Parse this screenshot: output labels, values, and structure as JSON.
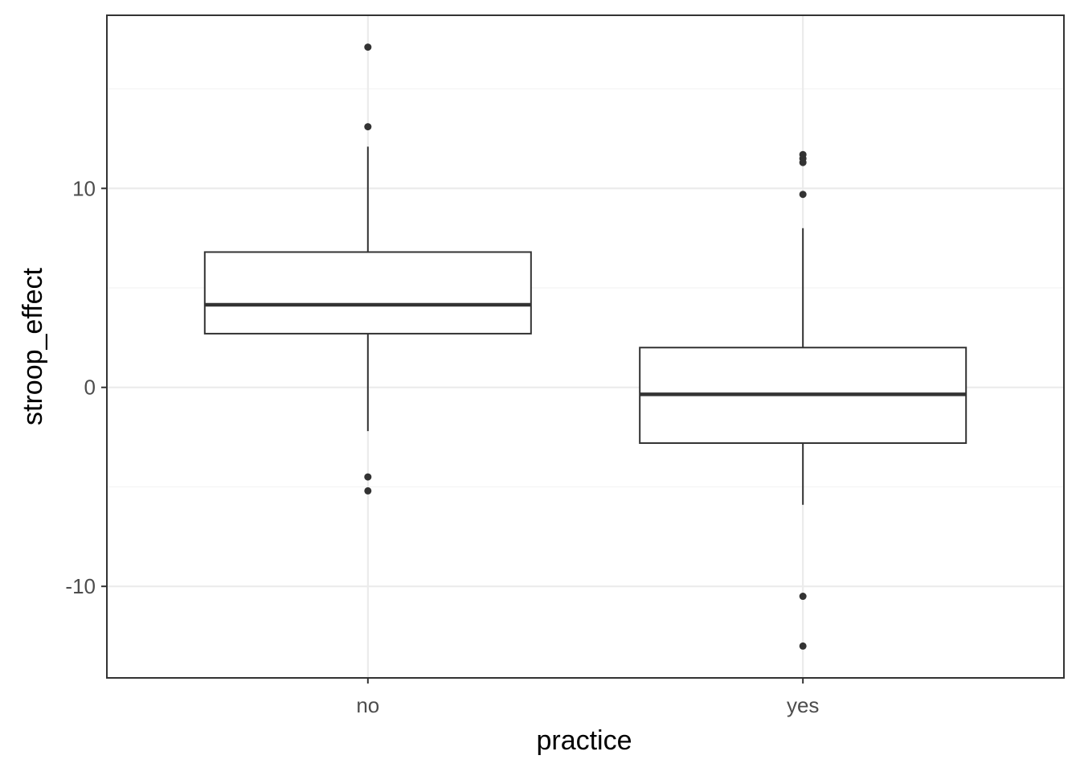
{
  "chart_data": {
    "type": "boxplot",
    "title": "",
    "xlabel": "practice",
    "ylabel": "stroop_effect",
    "ylim": [
      -14.6,
      18.7
    ],
    "y_ticks": [
      "-10",
      "0",
      "10"
    ],
    "y_tick_values": [
      -10,
      0,
      10
    ],
    "grid": true,
    "legend": "none",
    "categories": [
      "no",
      "yes"
    ],
    "boxes": [
      {
        "category": "no",
        "lower_whisker": -2.2,
        "q1": 2.7,
        "median": 4.15,
        "q3": 6.8,
        "upper_whisker": 12.1,
        "outliers": [
          17.1,
          13.1,
          -4.5,
          -5.2
        ]
      },
      {
        "category": "yes",
        "lower_whisker": -5.9,
        "q1": -2.8,
        "median": -0.35,
        "q3": 2.0,
        "upper_whisker": 8.0,
        "outliers": [
          11.7,
          11.5,
          11.3,
          9.7,
          -10.5,
          -13.0
        ]
      }
    ],
    "colors": {
      "box_line": "#333333",
      "panel_border": "#333333",
      "grid_major": "#ebebeb",
      "grid_minor": "#f3f3f3",
      "tick_text": "#4d4d4d",
      "axis_title": "#000000"
    }
  }
}
